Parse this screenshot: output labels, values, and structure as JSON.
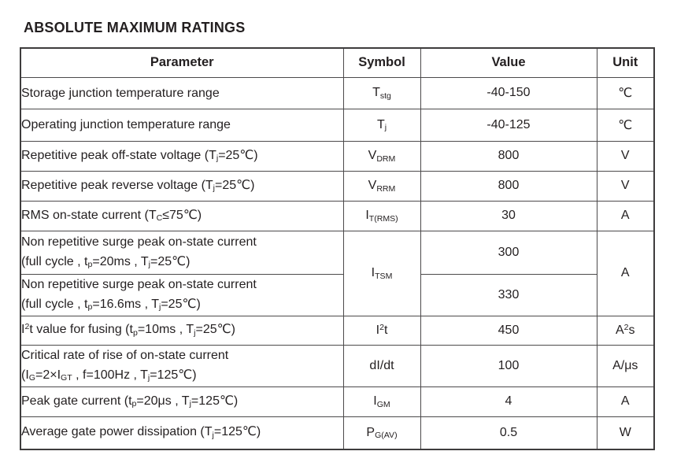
{
  "page": {
    "title": "ABSOLUTE MAXIMUM RATINGS"
  },
  "table": {
    "headers": {
      "parameter": "Parameter",
      "symbol": "Symbol",
      "value": "Value",
      "unit": "Unit"
    },
    "rows": [
      {
        "parameter": [
          {
            "t": "Storage junction temperature range"
          }
        ],
        "symbol": [
          {
            "t": "T"
          },
          {
            "t": "stg",
            "s": "sub"
          }
        ],
        "value": [
          {
            "t": "-40-150"
          }
        ],
        "unit": [
          {
            "t": "℃"
          }
        ]
      },
      {
        "parameter": [
          {
            "t": "Operating junction temperature range"
          }
        ],
        "symbol": [
          {
            "t": "T"
          },
          {
            "t": "j",
            "s": "sub"
          }
        ],
        "value": [
          {
            "t": "-40-125"
          }
        ],
        "unit": [
          {
            "t": "℃"
          }
        ]
      },
      {
        "parameter": [
          {
            "t": "Repetitive peak off-state voltage (T"
          },
          {
            "t": "j",
            "s": "sub"
          },
          {
            "t": "=25℃)"
          }
        ],
        "symbol": [
          {
            "t": "V"
          },
          {
            "t": "DRM",
            "s": "sub"
          }
        ],
        "value": [
          {
            "t": "800"
          }
        ],
        "unit": [
          {
            "t": "V"
          }
        ]
      },
      {
        "parameter": [
          {
            "t": "Repetitive peak reverse voltage (T"
          },
          {
            "t": "j",
            "s": "sub"
          },
          {
            "t": "=25℃)"
          }
        ],
        "symbol": [
          {
            "t": "V"
          },
          {
            "t": "RRM",
            "s": "sub"
          }
        ],
        "value": [
          {
            "t": "800"
          }
        ],
        "unit": [
          {
            "t": "V"
          }
        ]
      },
      {
        "parameter": [
          {
            "t": "RMS on-state current (T"
          },
          {
            "t": "C",
            "s": "sub"
          },
          {
            "t": "≤75℃)"
          }
        ],
        "symbol": [
          {
            "t": "I"
          },
          {
            "t": "T(RMS)",
            "s": "sub"
          }
        ],
        "value": [
          {
            "t": "30"
          }
        ],
        "unit": [
          {
            "t": "A"
          }
        ]
      },
      {
        "parameter": [
          {
            "t": "Non repetitive surge peak on-state current"
          },
          {
            "br": true
          },
          {
            "t": "(full cycle , t"
          },
          {
            "t": "p",
            "s": "sub"
          },
          {
            "t": "=20ms , T"
          },
          {
            "t": "j",
            "s": "sub"
          },
          {
            "t": "=25℃)"
          }
        ],
        "symbol": [
          {
            "t": "I"
          },
          {
            "t": "TSM",
            "s": "sub"
          }
        ],
        "value": [
          {
            "t": "300"
          }
        ],
        "unit": [
          {
            "t": "A"
          }
        ]
      },
      {
        "parameter": [
          {
            "t": "Non repetitive surge peak on-state current"
          },
          {
            "br": true
          },
          {
            "t": "(full cycle , t"
          },
          {
            "t": "p",
            "s": "sub"
          },
          {
            "t": "=16.6ms , T"
          },
          {
            "t": "j",
            "s": "sub"
          },
          {
            "t": "=25℃)"
          }
        ],
        "value": [
          {
            "t": "330"
          }
        ]
      },
      {
        "parameter": [
          {
            "t": "I"
          },
          {
            "t": "2",
            "s": "sup"
          },
          {
            "t": "t value for fusing (t"
          },
          {
            "t": "p",
            "s": "sub"
          },
          {
            "t": "=10ms , T"
          },
          {
            "t": "j",
            "s": "sub"
          },
          {
            "t": "=25℃)"
          }
        ],
        "symbol": [
          {
            "t": "I"
          },
          {
            "t": "2",
            "s": "sup"
          },
          {
            "t": "t"
          }
        ],
        "value": [
          {
            "t": "450"
          }
        ],
        "unit": [
          {
            "t": "A"
          },
          {
            "t": "2",
            "s": "sup"
          },
          {
            "t": "s"
          }
        ]
      },
      {
        "parameter": [
          {
            "t": "Critical rate of rise of on-state current"
          },
          {
            "br": true
          },
          {
            "t": "(I"
          },
          {
            "t": "G",
            "s": "sub"
          },
          {
            "t": "=2×I"
          },
          {
            "t": "GT",
            "s": "sub"
          },
          {
            "t": " , f=100Hz , T"
          },
          {
            "t": "j",
            "s": "sub"
          },
          {
            "t": "=125℃)"
          }
        ],
        "symbol": [
          {
            "t": "dI/dt"
          }
        ],
        "value": [
          {
            "t": "100"
          }
        ],
        "unit": [
          {
            "t": "A/μs"
          }
        ]
      },
      {
        "parameter": [
          {
            "t": "Peak gate current (t"
          },
          {
            "t": "p",
            "s": "sub"
          },
          {
            "t": "=20μs , T"
          },
          {
            "t": "j",
            "s": "sub"
          },
          {
            "t": "=125℃)"
          }
        ],
        "symbol": [
          {
            "t": "I"
          },
          {
            "t": "GM",
            "s": "sub"
          }
        ],
        "value": [
          {
            "t": "4"
          }
        ],
        "unit": [
          {
            "t": "A"
          }
        ]
      },
      {
        "parameter": [
          {
            "t": "Average gate power dissipation (T"
          },
          {
            "t": "j",
            "s": "sub"
          },
          {
            "t": "=125℃)"
          }
        ],
        "symbol": [
          {
            "t": "P"
          },
          {
            "t": "G(AV)",
            "s": "sub"
          }
        ],
        "value": [
          {
            "t": "0.5"
          }
        ],
        "unit": [
          {
            "t": "W"
          }
        ]
      }
    ]
  }
}
